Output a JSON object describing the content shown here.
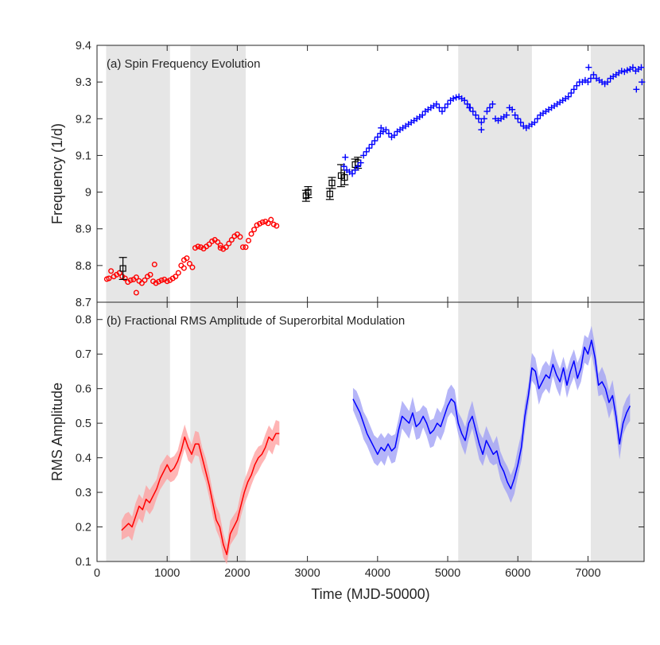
{
  "chart_data": [
    {
      "type": "scatter",
      "panel": "a",
      "title": "(a) Spin Frequency Evolution",
      "xlabel": "",
      "ylabel": "Frequency (1/d)",
      "xlim": [
        0,
        7800
      ],
      "ylim": [
        8.7,
        9.4
      ],
      "xticks": [
        0,
        1000,
        2000,
        3000,
        4000,
        5000,
        6000,
        7000
      ],
      "yticks": [
        8.7,
        8.8,
        8.9,
        9.0,
        9.1,
        9.2,
        9.3,
        9.4
      ],
      "ytick_labels": [
        "8.7",
        "8.8",
        "8.9",
        "9",
        "9.1",
        "9.2",
        "9.3",
        "9.4"
      ],
      "shaded_intervals": [
        [
          130,
          1040
        ],
        [
          1330,
          2120
        ],
        [
          5150,
          6200
        ],
        [
          7040,
          7800
        ]
      ],
      "series": [
        {
          "name": "red circles",
          "marker": "circle",
          "color": "#ff0000",
          "x": [
            140,
            170,
            200,
            240,
            280,
            320,
            360,
            400,
            440,
            480,
            520,
            560,
            600,
            640,
            680,
            720,
            760,
            800,
            840,
            880,
            920,
            960,
            1000,
            1040,
            1080,
            1120,
            1160,
            1200,
            1240,
            1280,
            1320,
            1360,
            1400,
            1440,
            1480,
            1520,
            1560,
            1600,
            1640,
            1680,
            1720,
            1760,
            1800,
            1840,
            1880,
            1920,
            1960,
            2000,
            2040,
            2080,
            2120,
            2160,
            2200,
            2240,
            2280,
            2320,
            2360,
            2400,
            2440,
            2480,
            2520,
            2560,
            560,
            820,
            1240,
            1760
          ],
          "y": [
            8.763,
            8.765,
            8.785,
            8.77,
            8.775,
            8.78,
            8.77,
            8.765,
            8.755,
            8.76,
            8.762,
            8.768,
            8.758,
            8.752,
            8.76,
            8.77,
            8.775,
            8.757,
            8.752,
            8.756,
            8.76,
            8.762,
            8.757,
            8.76,
            8.765,
            8.77,
            8.78,
            8.8,
            8.815,
            8.82,
            8.805,
            8.795,
            8.848,
            8.852,
            8.85,
            8.846,
            8.852,
            8.858,
            8.866,
            8.87,
            8.864,
            8.855,
            8.845,
            8.85,
            8.86,
            8.87,
            8.88,
            8.885,
            8.878,
            8.85,
            8.85,
            8.868,
            8.886,
            8.898,
            8.91,
            8.914,
            8.918,
            8.92,
            8.915,
            8.925,
            8.912,
            8.908,
            8.726,
            8.803,
            8.793,
            8.848
          ]
        },
        {
          "name": "black squares",
          "marker": "square",
          "color": "#000000",
          "x": [
            370,
            2980,
            3010,
            3320,
            3350,
            3480,
            3530,
            3680,
            3720
          ],
          "y": [
            8.792,
            8.99,
            9.0,
            8.995,
            9.025,
            9.045,
            9.04,
            9.075,
            9.08
          ],
          "yerr": [
            0.03,
            0.015,
            0.015,
            0.015,
            0.015,
            0.03,
            0.02,
            0.015,
            0.015
          ]
        },
        {
          "name": "blue crosses",
          "marker": "plus",
          "color": "#0000ff",
          "x": [
            3520,
            3560,
            3600,
            3640,
            3680,
            3720,
            3760,
            3800,
            3840,
            3880,
            3920,
            3960,
            4000,
            4040,
            4080,
            4120,
            4160,
            4200,
            4240,
            4280,
            4320,
            4360,
            4400,
            4440,
            4480,
            4520,
            4560,
            4600,
            4640,
            4680,
            4720,
            4760,
            4800,
            4840,
            4880,
            4920,
            4960,
            5000,
            5040,
            5080,
            5120,
            5160,
            5200,
            5240,
            5280,
            5320,
            5360,
            5400,
            5440,
            5480,
            5520,
            5560,
            5600,
            5640,
            5680,
            5720,
            5760,
            5800,
            5840,
            5880,
            5920,
            5960,
            6000,
            6040,
            6080,
            6120,
            6160,
            6200,
            6240,
            6280,
            6320,
            6360,
            6400,
            6440,
            6480,
            6520,
            6560,
            6600,
            6640,
            6680,
            6720,
            6760,
            6800,
            6840,
            6880,
            6920,
            6960,
            7000,
            7040,
            7080,
            7120,
            7160,
            7200,
            7240,
            7280,
            7320,
            7360,
            7400,
            7440,
            7480,
            7520,
            7560,
            7600,
            7640,
            7680,
            7720,
            7760,
            3540,
            4050,
            5310,
            5480,
            7010,
            7690,
            7770
          ],
          "y": [
            9.07,
            9.06,
            9.055,
            9.05,
            9.06,
            9.07,
            9.08,
            9.1,
            9.11,
            9.12,
            9.13,
            9.14,
            9.15,
            9.16,
            9.165,
            9.17,
            9.16,
            9.15,
            9.155,
            9.165,
            9.17,
            9.175,
            9.18,
            9.185,
            9.19,
            9.195,
            9.2,
            9.205,
            9.21,
            9.22,
            9.225,
            9.23,
            9.235,
            9.24,
            9.23,
            9.22,
            9.23,
            9.24,
            9.25,
            9.255,
            9.258,
            9.26,
            9.255,
            9.25,
            9.24,
            9.23,
            9.22,
            9.21,
            9.2,
            9.19,
            9.2,
            9.22,
            9.23,
            9.24,
            9.2,
            9.195,
            9.2,
            9.205,
            9.21,
            9.23,
            9.225,
            9.21,
            9.2,
            9.19,
            9.18,
            9.175,
            9.18,
            9.185,
            9.19,
            9.2,
            9.21,
            9.215,
            9.22,
            9.225,
            9.23,
            9.235,
            9.24,
            9.245,
            9.25,
            9.255,
            9.26,
            9.27,
            9.28,
            9.29,
            9.3,
            9.3,
            9.305,
            9.3,
            9.31,
            9.32,
            9.31,
            9.305,
            9.3,
            9.295,
            9.3,
            9.31,
            9.315,
            9.32,
            9.325,
            9.33,
            9.328,
            9.332,
            9.335,
            9.34,
            9.33,
            9.335,
            9.34,
            9.095,
            9.175,
            9.23,
            9.17,
            9.34,
            9.28,
            9.3
          ]
        }
      ]
    },
    {
      "type": "line",
      "panel": "b",
      "title": "(b) Fractional RMS Amplitude of Superorbital Modulation",
      "xlabel": "Time (MJD-50000)",
      "ylabel": "RMS Amplitude",
      "xlim": [
        0,
        7800
      ],
      "ylim": [
        0.1,
        0.85
      ],
      "xticks": [
        0,
        1000,
        2000,
        3000,
        4000,
        5000,
        6000,
        7000
      ],
      "xtick_labels": [
        "0",
        "1000",
        "2000",
        "3000",
        "4000",
        "5000",
        "6000",
        "7000"
      ],
      "yticks": [
        0.1,
        0.2,
        0.3,
        0.4,
        0.5,
        0.6,
        0.7,
        0.8
      ],
      "ytick_labels": [
        "0.1",
        "0.2",
        "0.3",
        "0.4",
        "0.5",
        "0.6",
        "0.7",
        "0.8"
      ],
      "shaded_intervals": [
        [
          130,
          1040
        ],
        [
          1330,
          2120
        ],
        [
          5150,
          6200
        ],
        [
          7040,
          7800
        ]
      ],
      "series": [
        {
          "name": "red RMS",
          "color": "#ff0000",
          "band_color": "#ff9c9c",
          "x": [
            350,
            400,
            450,
            500,
            550,
            600,
            650,
            700,
            750,
            800,
            850,
            900,
            950,
            1000,
            1050,
            1100,
            1150,
            1200,
            1250,
            1300,
            1350,
            1400,
            1450,
            1500,
            1550,
            1600,
            1650,
            1700,
            1750,
            1800,
            1850,
            1900,
            1950,
            2000,
            2050,
            2100,
            2150,
            2200,
            2250,
            2300,
            2350,
            2400,
            2450,
            2500,
            2550,
            2600
          ],
          "y": [
            0.19,
            0.2,
            0.21,
            0.2,
            0.23,
            0.26,
            0.25,
            0.28,
            0.27,
            0.29,
            0.31,
            0.34,
            0.36,
            0.38,
            0.36,
            0.37,
            0.39,
            0.42,
            0.46,
            0.43,
            0.41,
            0.44,
            0.44,
            0.4,
            0.36,
            0.32,
            0.27,
            0.22,
            0.2,
            0.15,
            0.12,
            0.18,
            0.2,
            0.22,
            0.26,
            0.3,
            0.33,
            0.35,
            0.38,
            0.4,
            0.41,
            0.43,
            0.46,
            0.45,
            0.47,
            0.47
          ],
          "band_halfwidth": 0.035
        },
        {
          "name": "blue RMS",
          "color": "#0000ff",
          "band_color": "#9c9cf5",
          "x": [
            3650,
            3700,
            3750,
            3800,
            3850,
            3900,
            3950,
            4000,
            4050,
            4100,
            4150,
            4200,
            4250,
            4300,
            4350,
            4400,
            4450,
            4500,
            4550,
            4600,
            4650,
            4700,
            4750,
            4800,
            4850,
            4900,
            4950,
            5000,
            5050,
            5100,
            5150,
            5200,
            5250,
            5300,
            5350,
            5400,
            5450,
            5500,
            5550,
            5600,
            5650,
            5700,
            5750,
            5800,
            5850,
            5900,
            5950,
            6000,
            6050,
            6100,
            6150,
            6200,
            6250,
            6300,
            6350,
            6400,
            6450,
            6500,
            6550,
            6600,
            6650,
            6700,
            6750,
            6800,
            6850,
            6900,
            6950,
            7000,
            7050,
            7100,
            7150,
            7200,
            7250,
            7300,
            7350,
            7400,
            7450,
            7500,
            7550,
            7600
          ],
          "y": [
            0.57,
            0.55,
            0.53,
            0.5,
            0.47,
            0.45,
            0.43,
            0.41,
            0.43,
            0.42,
            0.44,
            0.42,
            0.43,
            0.48,
            0.52,
            0.51,
            0.5,
            0.53,
            0.49,
            0.5,
            0.52,
            0.5,
            0.47,
            0.48,
            0.5,
            0.49,
            0.52,
            0.55,
            0.57,
            0.56,
            0.5,
            0.47,
            0.45,
            0.5,
            0.52,
            0.48,
            0.44,
            0.41,
            0.45,
            0.43,
            0.41,
            0.42,
            0.38,
            0.36,
            0.33,
            0.31,
            0.34,
            0.38,
            0.43,
            0.52,
            0.58,
            0.66,
            0.65,
            0.6,
            0.62,
            0.64,
            0.63,
            0.67,
            0.64,
            0.62,
            0.66,
            0.61,
            0.65,
            0.68,
            0.63,
            0.66,
            0.72,
            0.7,
            0.74,
            0.69,
            0.61,
            0.62,
            0.6,
            0.56,
            0.58,
            0.52,
            0.44,
            0.5,
            0.53,
            0.55
          ],
          "band_halfwidth": 0.04
        }
      ]
    }
  ]
}
